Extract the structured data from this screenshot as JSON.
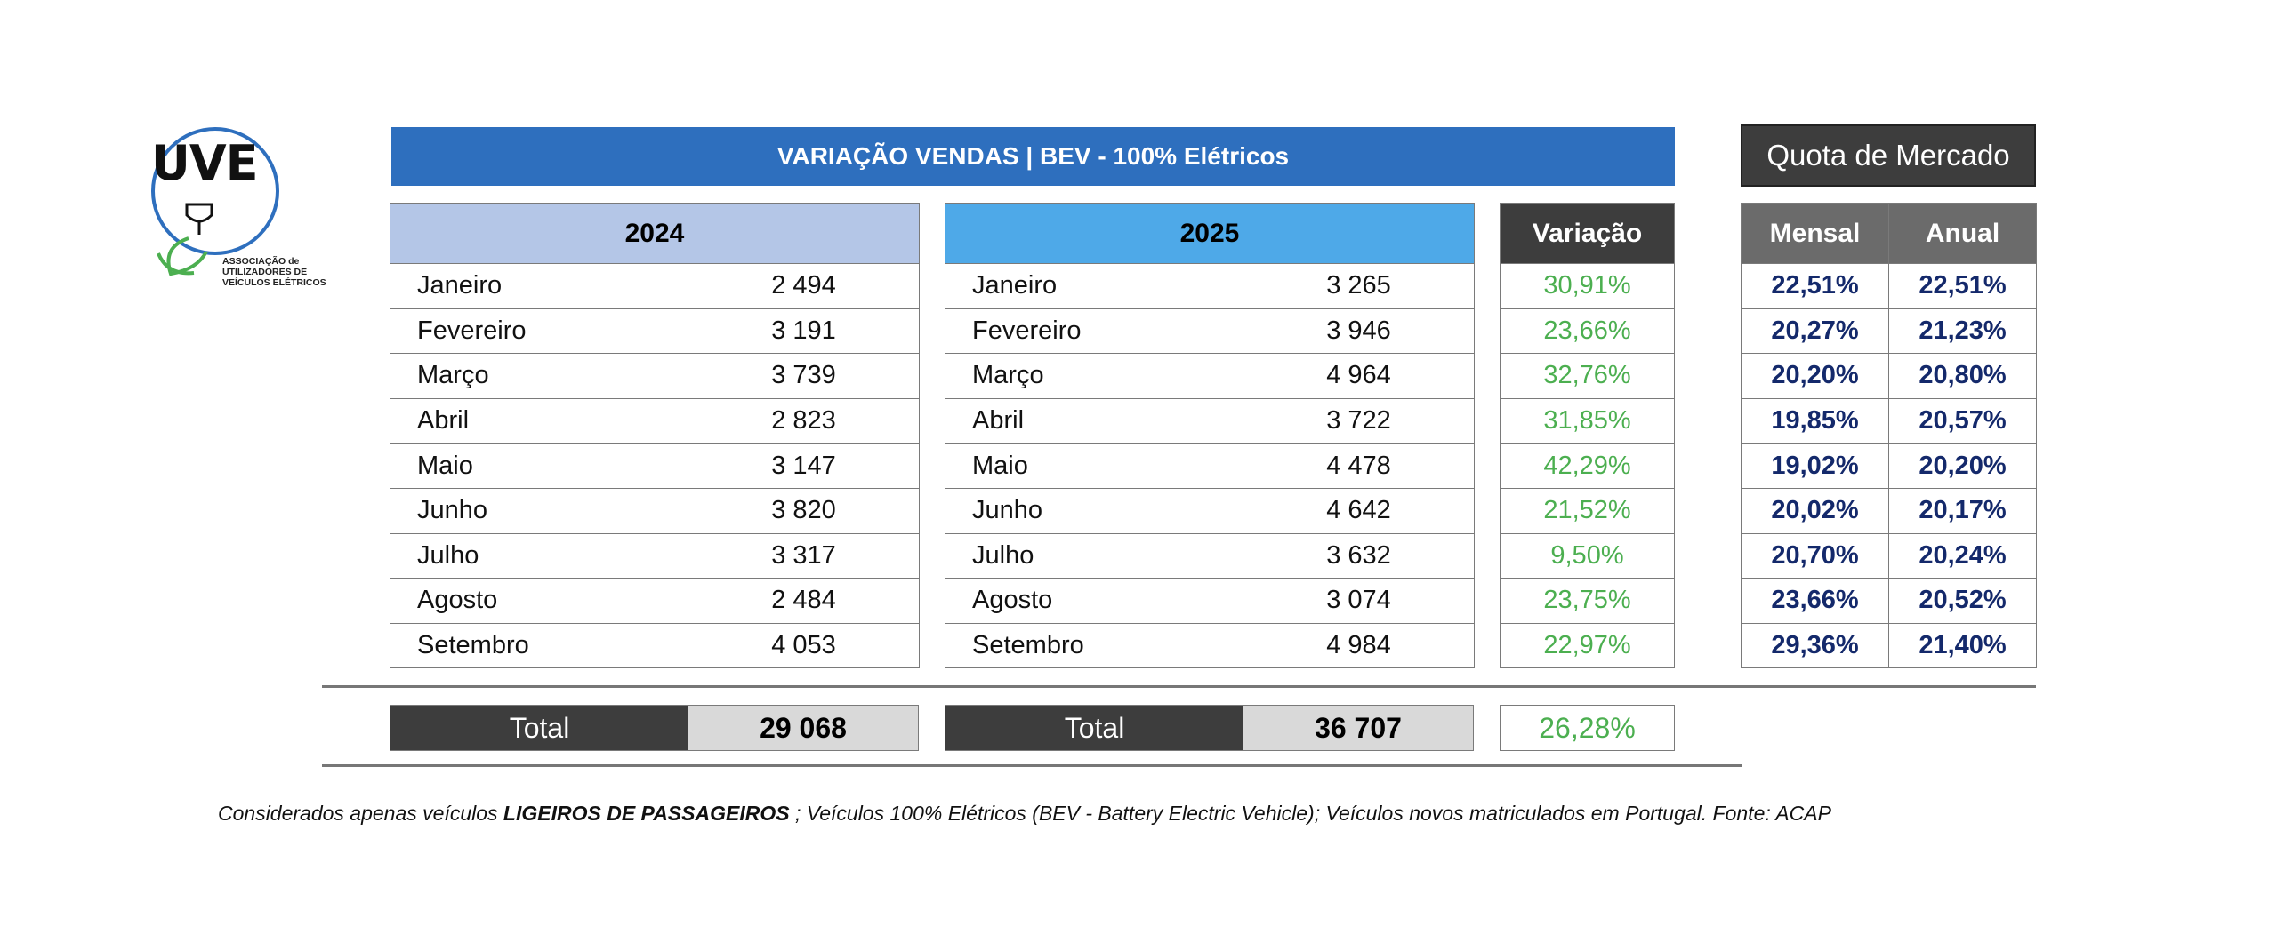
{
  "logo": {
    "mark": "UVE",
    "text_lines": [
      "ASSOCIAÇÃO de",
      "UTILIZADORES DE",
      "VEÍCULOS ELÉTRICOS"
    ]
  },
  "title": "VARIAÇÃO VENDAS | BEV - 100% Elétricos",
  "quota_title": "Quota de Mercado",
  "table_2024": {
    "header": "2024",
    "rows": [
      {
        "month": "Janeiro",
        "value": "2 494"
      },
      {
        "month": "Fevereiro",
        "value": "3 191"
      },
      {
        "month": "Março",
        "value": "3 739"
      },
      {
        "month": "Abril",
        "value": "2 823"
      },
      {
        "month": "Maio",
        "value": "3 147"
      },
      {
        "month": "Junho",
        "value": "3 820"
      },
      {
        "month": "Julho",
        "value": "3 317"
      },
      {
        "month": "Agosto",
        "value": "2 484"
      },
      {
        "month": "Setembro",
        "value": "4 053"
      }
    ],
    "total_label": "Total",
    "total_value": "29 068"
  },
  "table_2025": {
    "header": "2025",
    "rows": [
      {
        "month": "Janeiro",
        "value": "3 265"
      },
      {
        "month": "Fevereiro",
        "value": "3 946"
      },
      {
        "month": "Março",
        "value": "4 964"
      },
      {
        "month": "Abril",
        "value": "3 722"
      },
      {
        "month": "Maio",
        "value": "4 478"
      },
      {
        "month": "Junho",
        "value": "4 642"
      },
      {
        "month": "Julho",
        "value": "3 632"
      },
      {
        "month": "Agosto",
        "value": "3 074"
      },
      {
        "month": "Setembro",
        "value": "4 984"
      }
    ],
    "total_label": "Total",
    "total_value": "36 707"
  },
  "variation": {
    "header": "Variação",
    "values": [
      "30,91%",
      "23,66%",
      "32,76%",
      "31,85%",
      "42,29%",
      "21,52%",
      "9,50%",
      "23,75%",
      "22,97%"
    ],
    "total": "26,28%"
  },
  "market_share": {
    "header_monthly": "Mensal",
    "header_annual": "Anual",
    "rows": [
      {
        "monthly": "22,51%",
        "annual": "22,51%"
      },
      {
        "monthly": "20,27%",
        "annual": "21,23%"
      },
      {
        "monthly": "20,20%",
        "annual": "20,80%"
      },
      {
        "monthly": "19,85%",
        "annual": "20,57%"
      },
      {
        "monthly": "19,02%",
        "annual": "20,20%"
      },
      {
        "monthly": "20,02%",
        "annual": "20,17%"
      },
      {
        "monthly": "20,70%",
        "annual": "20,24%"
      },
      {
        "monthly": "23,66%",
        "annual": "20,52%"
      },
      {
        "monthly": "29,36%",
        "annual": "21,40%"
      }
    ]
  },
  "footnote": {
    "prefix": "Considerados apenas veículos ",
    "bold": "LIGEIROS DE PASSAGEIROS",
    "suffix": " ; Veículos 100% Elétricos (BEV - Battery Electric Vehicle); Veículos novos matriculados em Portugal. Fonte: ACAP"
  },
  "colors": {
    "title_bg": "#2e6fbe",
    "header_2024": "#b4c6e7",
    "header_2025": "#4ea9e8",
    "dark": "#3d3d3d",
    "variation_text": "#4caf50",
    "share_text": "#14296b"
  }
}
